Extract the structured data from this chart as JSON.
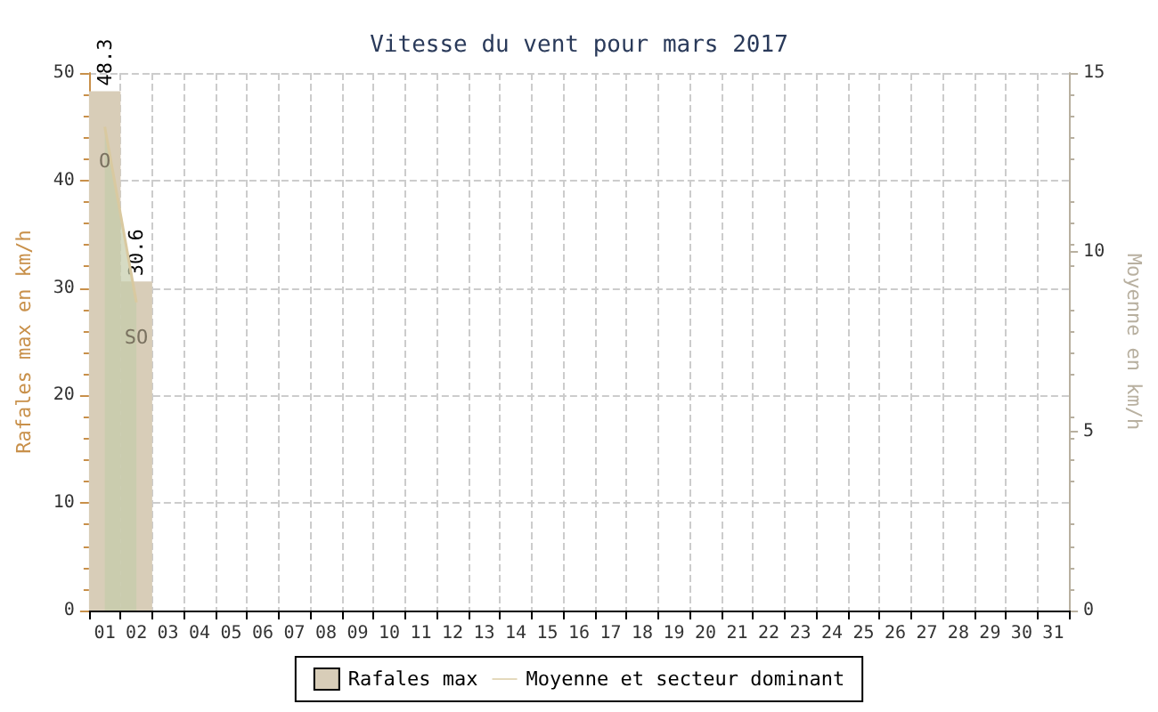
{
  "chart_data": {
    "type": "bar",
    "title": "Vitesse du vent pour mars 2017",
    "ylabel": "Rafales max en km/h",
    "y2label": "Moyenne en km/h",
    "categories": [
      "01",
      "02",
      "03",
      "04",
      "05",
      "06",
      "07",
      "08",
      "09",
      "10",
      "11",
      "12",
      "13",
      "14",
      "15",
      "16",
      "17",
      "18",
      "19",
      "20",
      "21",
      "22",
      "23",
      "24",
      "25",
      "26",
      "27",
      "28",
      "29",
      "30",
      "31"
    ],
    "series": [
      {
        "name": "Rafales max",
        "color": "#d8cdb8",
        "data_labels": true,
        "values": [
          48.3,
          30.6,
          null,
          null,
          null,
          null,
          null,
          null,
          null,
          null,
          null,
          null,
          null,
          null,
          null,
          null,
          null,
          null,
          null,
          null,
          null,
          null,
          null,
          null,
          null,
          null,
          null,
          null,
          null,
          null,
          null
        ]
      },
      {
        "name": "Moyenne et secteur dominant",
        "type": "area",
        "axis": "y2",
        "color": "#d9c9a0",
        "value_labels": [
          "O",
          "SO",
          null,
          null,
          null,
          null,
          null,
          null,
          null,
          null,
          null,
          null,
          null,
          null,
          null,
          null,
          null,
          null,
          null,
          null,
          null,
          null,
          null,
          null,
          null,
          null,
          null,
          null,
          null,
          null,
          null
        ],
        "values": [
          13.5,
          8.6,
          null,
          null,
          null,
          null,
          null,
          null,
          null,
          null,
          null,
          null,
          null,
          null,
          null,
          null,
          null,
          null,
          null,
          null,
          null,
          null,
          null,
          null,
          null,
          null,
          null,
          null,
          null,
          null,
          null
        ]
      }
    ],
    "ylim": [
      0,
      50
    ],
    "yticks": [
      0,
      10,
      20,
      30,
      40,
      50
    ],
    "y2lim": [
      0,
      15
    ],
    "y2ticks": [
      0,
      5,
      10,
      15
    ],
    "grid": true,
    "legend": "bottom",
    "marker": "none"
  }
}
